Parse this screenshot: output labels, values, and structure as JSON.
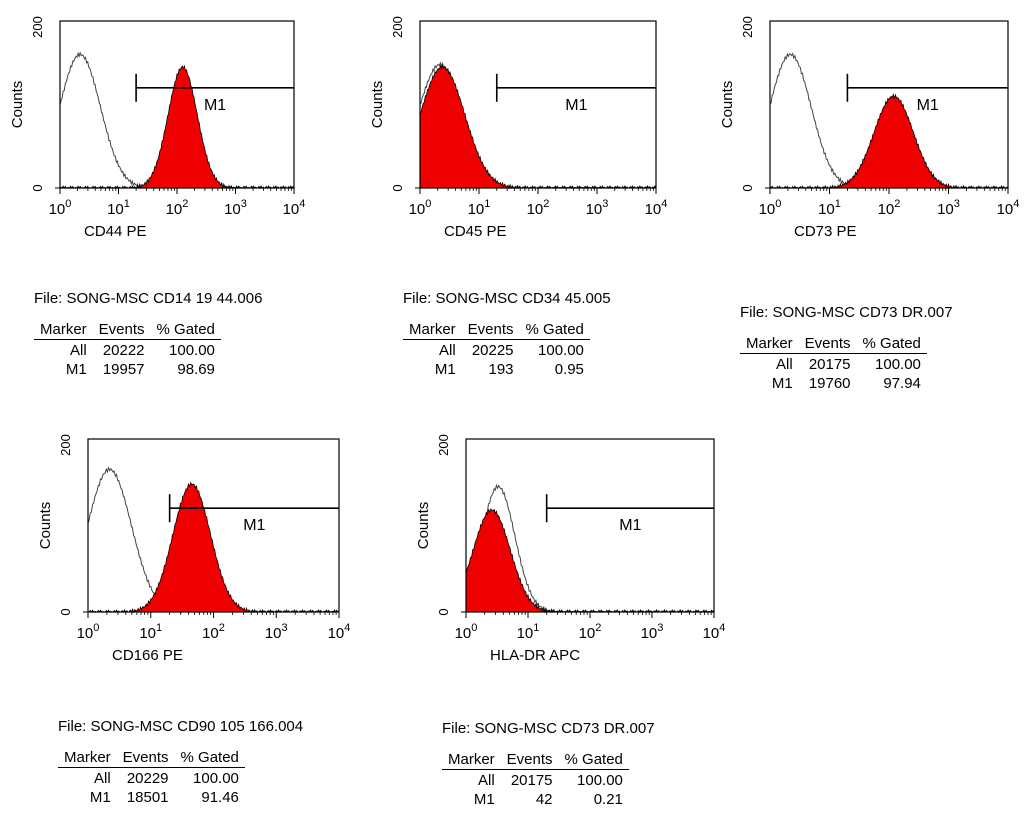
{
  "chart_data": [
    {
      "type": "area",
      "xlabel": "CD44 PE",
      "ylabel": "Counts",
      "x_scale": "log",
      "xlim": [
        1,
        10000
      ],
      "ylim": [
        0,
        200
      ],
      "y_ticks": [
        "0",
        "200"
      ],
      "marker": {
        "label": "M1",
        "from": 20,
        "to": 10000,
        "y": 120
      },
      "series": [
        {
          "role": "control",
          "peak_x": 2.2,
          "peak_y": 160,
          "spread": 0.35
        },
        {
          "role": "stained",
          "peak_x": 125,
          "peak_y": 145,
          "spread": 0.25
        }
      ]
    },
    {
      "type": "area",
      "xlabel": "CD45 PE",
      "ylabel": "Counts",
      "x_scale": "log",
      "xlim": [
        1,
        10000
      ],
      "ylim": [
        0,
        200
      ],
      "y_ticks": [
        "0",
        "200"
      ],
      "marker": {
        "label": "M1",
        "from": 20,
        "to": 10000,
        "y": 120
      },
      "series": [
        {
          "role": "control",
          "peak_x": 2.2,
          "peak_y": 148,
          "spread": 0.38
        },
        {
          "role": "stained",
          "peak_x": 2.4,
          "peak_y": 145,
          "spread": 0.38
        }
      ]
    },
    {
      "type": "area",
      "xlabel": "CD73 PE",
      "ylabel": "Counts",
      "x_scale": "log",
      "xlim": [
        1,
        10000
      ],
      "ylim": [
        0,
        200
      ],
      "y_ticks": [
        "0",
        "200"
      ],
      "marker": {
        "label": "M1",
        "from": 20,
        "to": 10000,
        "y": 120
      },
      "series": [
        {
          "role": "control",
          "peak_x": 2.2,
          "peak_y": 160,
          "spread": 0.35
        },
        {
          "role": "stained",
          "peak_x": 120,
          "peak_y": 110,
          "spread": 0.33
        }
      ]
    },
    {
      "type": "area",
      "xlabel": "CD166 PE",
      "ylabel": "Counts",
      "x_scale": "log",
      "xlim": [
        1,
        10000
      ],
      "ylim": [
        0,
        200
      ],
      "y_ticks": [
        "0",
        "200"
      ],
      "marker": {
        "label": "M1",
        "from": 20,
        "to": 10000,
        "y": 120
      },
      "series": [
        {
          "role": "control",
          "peak_x": 2.2,
          "peak_y": 165,
          "spread": 0.35
        },
        {
          "role": "stained",
          "peak_x": 45,
          "peak_y": 148,
          "spread": 0.3
        }
      ]
    },
    {
      "type": "area",
      "xlabel": "HLA-DR APC",
      "ylabel": "Counts",
      "x_scale": "log",
      "xlim": [
        1,
        10000
      ],
      "ylim": [
        0,
        200
      ],
      "y_ticks": [
        "0",
        "200"
      ],
      "marker": {
        "label": "M1",
        "from": 20,
        "to": 10000,
        "y": 120
      },
      "series": [
        {
          "role": "control",
          "peak_x": 3.3,
          "peak_y": 145,
          "spread": 0.27
        },
        {
          "role": "stained",
          "peak_x": 2.6,
          "peak_y": 118,
          "spread": 0.3
        }
      ]
    }
  ],
  "tables": [
    {
      "file": "File: SONG-MSC CD14 19 44.006",
      "headers": [
        "Marker",
        "Events",
        "% Gated"
      ],
      "rows": [
        [
          "All",
          "20222",
          "100.00"
        ],
        [
          "M1",
          "19957",
          "98.69"
        ]
      ]
    },
    {
      "file": "File: SONG-MSC CD34 45.005",
      "headers": [
        "Marker",
        "Events",
        "% Gated"
      ],
      "rows": [
        [
          "All",
          "20225",
          "100.00"
        ],
        [
          "M1",
          "193",
          "0.95"
        ]
      ]
    },
    {
      "file": "File: SONG-MSC CD73 DR.007",
      "headers": [
        "Marker",
        "Events",
        "% Gated"
      ],
      "rows": [
        [
          "All",
          "20175",
          "100.00"
        ],
        [
          "M1",
          "19760",
          "97.94"
        ]
      ]
    },
    {
      "file": "File: SONG-MSC CD90 105 166.004",
      "headers": [
        "Marker",
        "Events",
        "% Gated"
      ],
      "rows": [
        [
          "All",
          "20229",
          "100.00"
        ],
        [
          "M1",
          "18501",
          "91.46"
        ]
      ]
    },
    {
      "file": "File: SONG-MSC CD73 DR.007",
      "headers": [
        "Marker",
        "Events",
        "% Gated"
      ],
      "rows": [
        [
          "All",
          "20175",
          "100.00"
        ],
        [
          "M1",
          "42",
          "0.21"
        ]
      ]
    }
  ],
  "colors": {
    "stained_fill": "#ee0000",
    "control_line": "#444444",
    "axis": "#000000"
  }
}
